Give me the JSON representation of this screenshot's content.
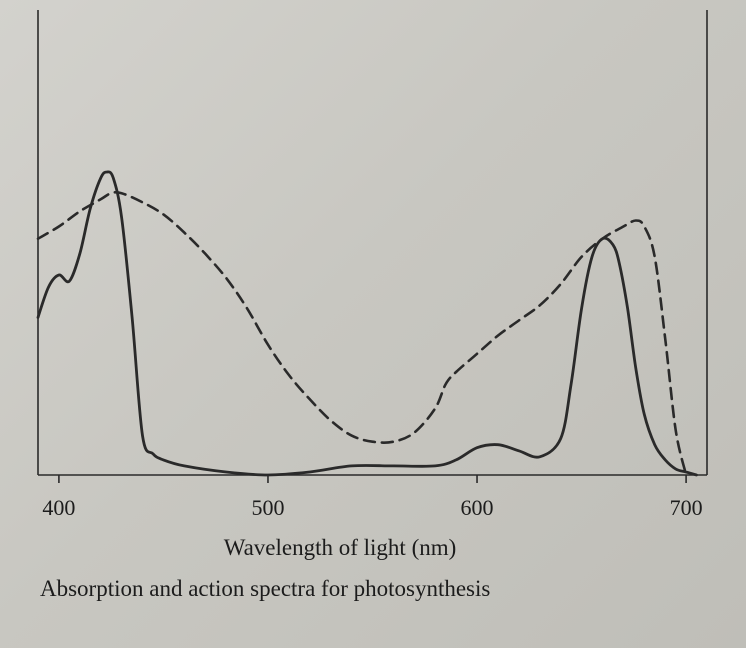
{
  "chart_data": {
    "type": "line",
    "title": "",
    "xlabel": "Wavelength of light (nm)",
    "caption": "Absorption and action spectra for photosynthesis",
    "xlim": [
      390,
      710
    ],
    "ylim": [
      0,
      1
    ],
    "x_ticks": [
      400,
      500,
      600,
      700
    ],
    "grid": false,
    "legend": "none",
    "series": [
      {
        "style": "solid",
        "color": "#2a2a2a",
        "x": [
          390,
          395,
          400,
          405,
          410,
          415,
          420,
          423,
          426,
          430,
          435,
          440,
          445,
          450,
          460,
          480,
          500,
          520,
          540,
          560,
          580,
          590,
          600,
          610,
          620,
          630,
          640,
          645,
          650,
          655,
          660,
          665,
          668,
          672,
          676,
          680,
          685,
          690,
          695,
          700,
          705
        ],
        "y": [
          0.52,
          0.62,
          0.66,
          0.64,
          0.73,
          0.88,
          0.98,
          1.0,
          0.98,
          0.85,
          0.52,
          0.13,
          0.07,
          0.05,
          0.03,
          0.01,
          0.0,
          0.01,
          0.03,
          0.03,
          0.03,
          0.05,
          0.09,
          0.1,
          0.08,
          0.06,
          0.12,
          0.3,
          0.55,
          0.72,
          0.78,
          0.76,
          0.7,
          0.55,
          0.35,
          0.2,
          0.1,
          0.05,
          0.02,
          0.01,
          0.0
        ]
      },
      {
        "style": "dashed",
        "color": "#2a2a2a",
        "x": [
          390,
          400,
          410,
          420,
          425,
          430,
          440,
          450,
          460,
          470,
          480,
          490,
          500,
          510,
          520,
          530,
          540,
          550,
          560,
          570,
          580,
          585,
          590,
          600,
          610,
          620,
          630,
          640,
          650,
          660,
          670,
          676,
          680,
          685,
          690,
          695,
          700
        ],
        "y": [
          0.78,
          0.82,
          0.87,
          0.91,
          0.93,
          0.93,
          0.9,
          0.86,
          0.8,
          0.73,
          0.65,
          0.55,
          0.43,
          0.33,
          0.25,
          0.18,
          0.13,
          0.11,
          0.11,
          0.14,
          0.22,
          0.3,
          0.34,
          0.4,
          0.46,
          0.51,
          0.56,
          0.63,
          0.72,
          0.78,
          0.82,
          0.84,
          0.82,
          0.72,
          0.45,
          0.15,
          0.0
        ]
      }
    ]
  }
}
